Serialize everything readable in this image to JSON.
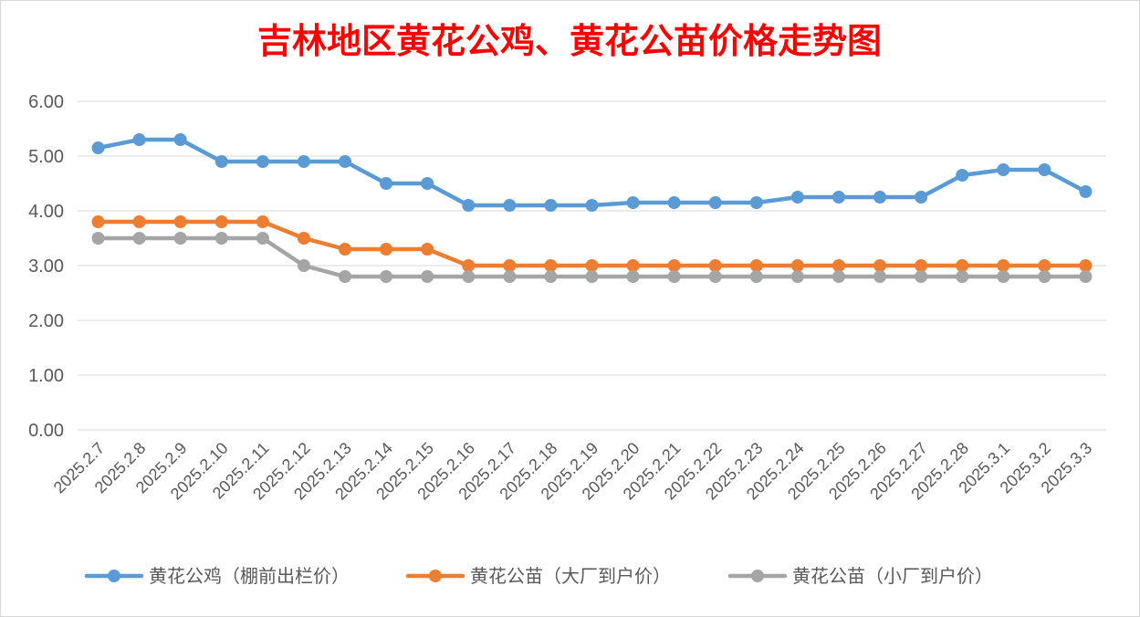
{
  "chart_data": {
    "type": "line",
    "title": "吉林地区黄花公鸡、黄花公苗价格走势图",
    "xlabel": "",
    "ylabel": "",
    "ylim": [
      0,
      6
    ],
    "yticks": [
      "0.00",
      "1.00",
      "2.00",
      "3.00",
      "4.00",
      "5.00",
      "6.00"
    ],
    "grid": true,
    "legend": "bottom",
    "categories": [
      "2025.2.7",
      "2025.2.8",
      "2025.2.9",
      "2025.2.10",
      "2025.2.11",
      "2025.2.12",
      "2025.2.13",
      "2025.2.14",
      "2025.2.15",
      "2025.2.16",
      "2025.2.17",
      "2025.2.18",
      "2025.2.19",
      "2025.2.20",
      "2025.2.21",
      "2025.2.22",
      "2025.2.23",
      "2025.2.24",
      "2025.2.25",
      "2025.2.26",
      "2025.2.27",
      "2025.2.28",
      "2025.3.1",
      "2025.3.2",
      "2025.3.3"
    ],
    "series": [
      {
        "name": "黄花公鸡（棚前出栏价）",
        "color": "#5B9BD5",
        "values": [
          5.15,
          5.3,
          5.3,
          4.9,
          4.9,
          4.9,
          4.9,
          4.5,
          4.5,
          4.1,
          4.1,
          4.1,
          4.1,
          4.15,
          4.15,
          4.15,
          4.15,
          4.25,
          4.25,
          4.25,
          4.25,
          4.65,
          4.75,
          4.75,
          4.35
        ]
      },
      {
        "name": "黄花公苗（大厂到户价）",
        "color": "#ED7D31",
        "values": [
          3.8,
          3.8,
          3.8,
          3.8,
          3.8,
          3.5,
          3.3,
          3.3,
          3.3,
          3.0,
          3.0,
          3.0,
          3.0,
          3.0,
          3.0,
          3.0,
          3.0,
          3.0,
          3.0,
          3.0,
          3.0,
          3.0,
          3.0,
          3.0,
          3.0
        ]
      },
      {
        "name": "黄花公苗（小厂到户价）",
        "color": "#A5A5A5",
        "values": [
          3.5,
          3.5,
          3.5,
          3.5,
          3.5,
          3.0,
          2.8,
          2.8,
          2.8,
          2.8,
          2.8,
          2.8,
          2.8,
          2.8,
          2.8,
          2.8,
          2.8,
          2.8,
          2.8,
          2.8,
          2.8,
          2.8,
          2.8,
          2.8,
          2.8
        ]
      }
    ]
  }
}
